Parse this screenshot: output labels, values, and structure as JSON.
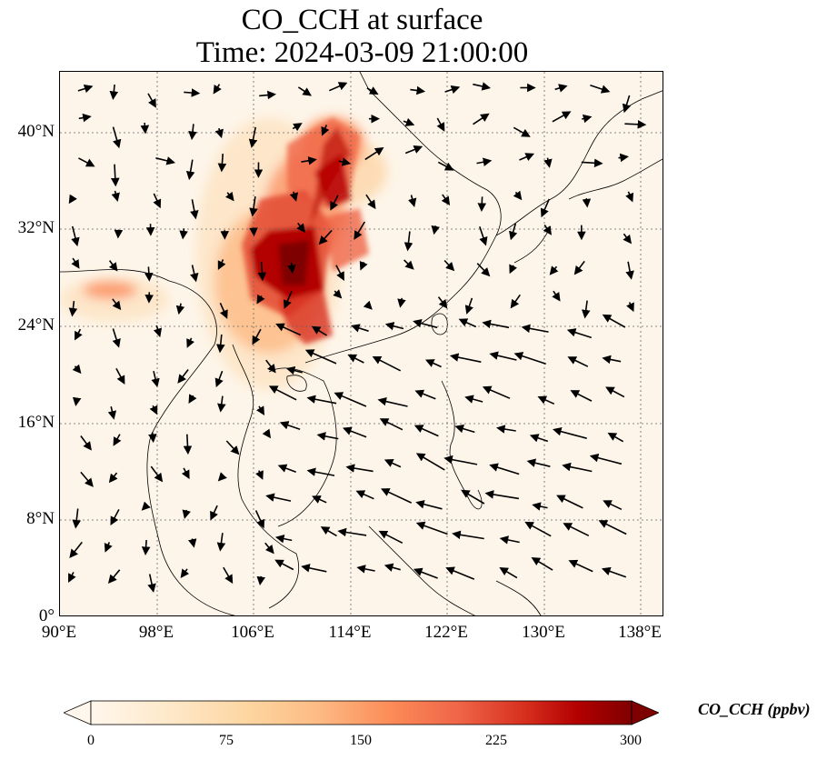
{
  "title": {
    "line1": "CO_CCH at surface",
    "line2": "Time: 2024-03-09 21:00:00"
  },
  "axes": {
    "lat_ticks": [
      "40°N",
      "32°N",
      "24°N",
      "16°N",
      "8°N",
      "0°"
    ],
    "lon_ticks": [
      "90°E",
      "98°E",
      "106°E",
      "114°E",
      "122°E",
      "130°E",
      "138°E"
    ],
    "lon_range": [
      90,
      140
    ],
    "lat_range": [
      0,
      45
    ],
    "gridlines": true,
    "grid_style": "dotted"
  },
  "colorbar": {
    "label": "CO_CCH (ppbv)",
    "ticks": [
      "0",
      "75",
      "150",
      "225",
      "300"
    ],
    "range": [
      0,
      300
    ],
    "colormap": "OrRd",
    "extend": "both",
    "colors": [
      "#fff7ec",
      "#fee8c8",
      "#fdd49e",
      "#fdbb84",
      "#fc8d59",
      "#ef6548",
      "#d7301f",
      "#b30000",
      "#7f0000"
    ]
  },
  "colors": {
    "background": "#fdf5e9",
    "coastline": "#000000",
    "wind_arrows": "#000000"
  }
}
